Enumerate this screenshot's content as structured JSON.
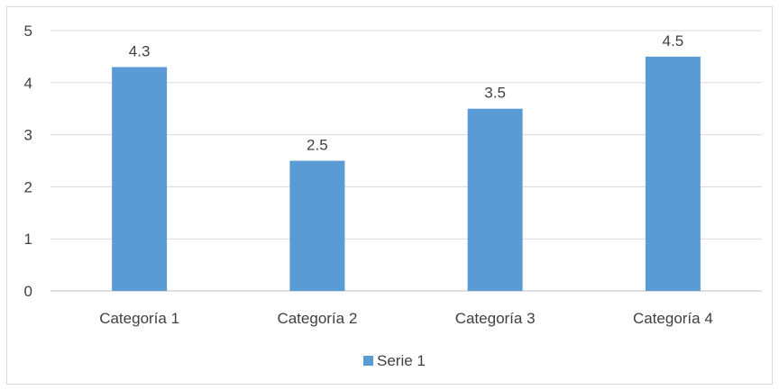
{
  "chart_data": {
    "type": "bar",
    "categories": [
      "Categoría 1",
      "Categoría 2",
      "Categoría 3",
      "Categoría 4"
    ],
    "series": [
      {
        "name": "Serie 1",
        "values": [
          4.3,
          2.5,
          3.5,
          4.5
        ],
        "color": "#5B9BD5"
      }
    ],
    "data_labels": [
      "4.3",
      "2.5",
      "3.5",
      "4.5"
    ],
    "title": "",
    "xlabel": "",
    "ylabel": "",
    "ylim": [
      0,
      5
    ],
    "yticks": [
      "0",
      "1",
      "2",
      "3",
      "4",
      "5"
    ],
    "grid": true,
    "legend": "bottom"
  }
}
